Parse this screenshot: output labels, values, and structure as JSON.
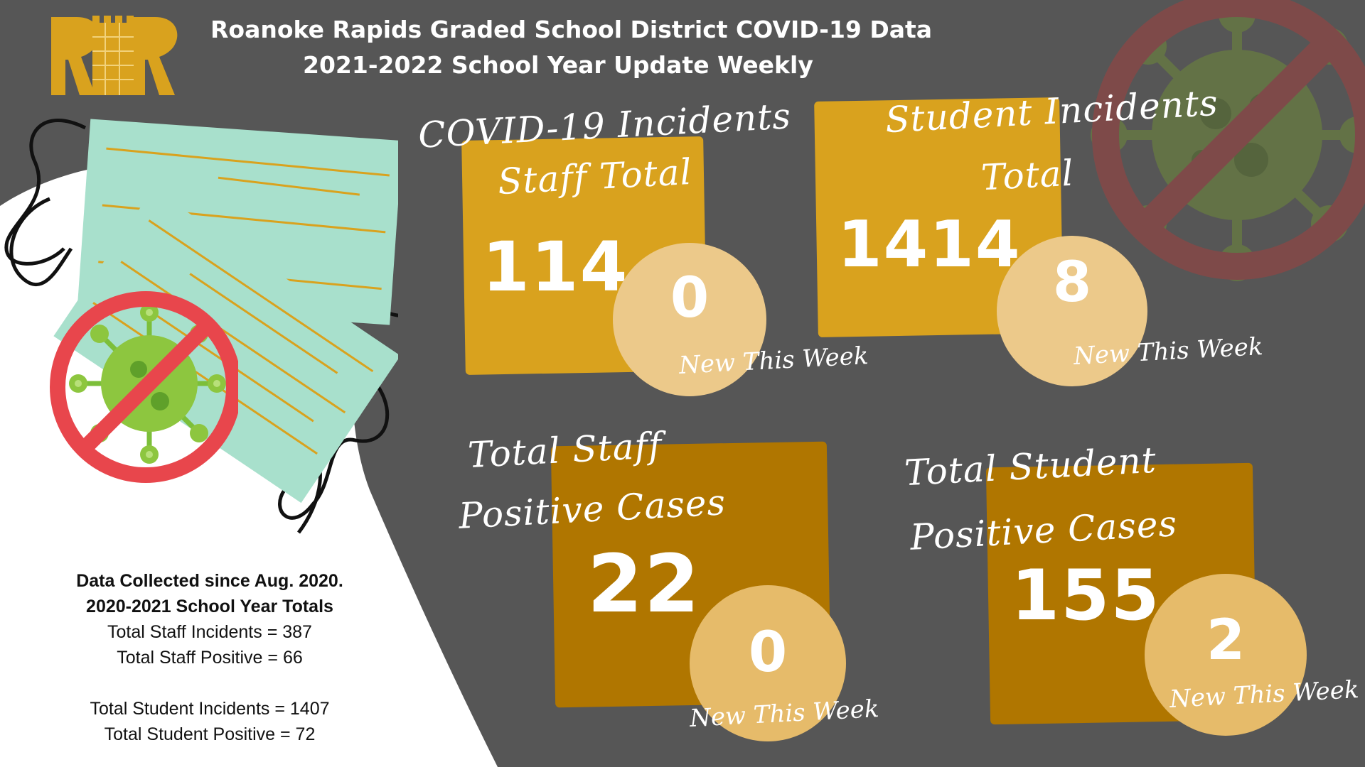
{
  "header": {
    "line1": "Roanoke Rapids Graded School District COVID-19 Data",
    "line2": "2021-2022 School Year Update Weekly",
    "logo": "RR"
  },
  "icons": {
    "logo": "rr-tower-logo-icon",
    "masks": "face-mask-icon",
    "no_virus_left": "no-virus-icon",
    "no_virus_right": "no-virus-icon"
  },
  "colors": {
    "background": "#565656",
    "gold_light": "#d9a21e",
    "gold_dark": "#b07600",
    "circle_light": "#ecc98a",
    "circle_mid": "#e6bb6a",
    "prohibition_red": "#e8464c",
    "virus_green": "#8dc63f",
    "mask_green": "#a8e0cc"
  },
  "cards": [
    {
      "title_line1": "COVID-19 Incidents",
      "title_line2": "Staff Total",
      "total": "114",
      "new_count": "0",
      "new_label": "New This Week"
    },
    {
      "title_line1": "Student Incidents",
      "title_line2": "Total",
      "total": "1414",
      "new_count": "8",
      "new_label": "New This Week"
    },
    {
      "title_line1": "Total Staff",
      "title_line2": "Positive Cases",
      "total": "22",
      "new_count": "0",
      "new_label": "New This Week"
    },
    {
      "title_line1": "Total Student",
      "title_line2": "Positive Cases",
      "total": "155",
      "new_count": "2",
      "new_label": "New This Week"
    }
  ],
  "notes": {
    "line1": "Data Collected since Aug. 2020.",
    "line2": "2020-2021 School Year Totals",
    "line3": "Total Staff Incidents = 387",
    "line4": "Total Staff Positive = 66",
    "line5": "Total Student Incidents = 1407",
    "line6": "Total Student Positive = 72"
  }
}
